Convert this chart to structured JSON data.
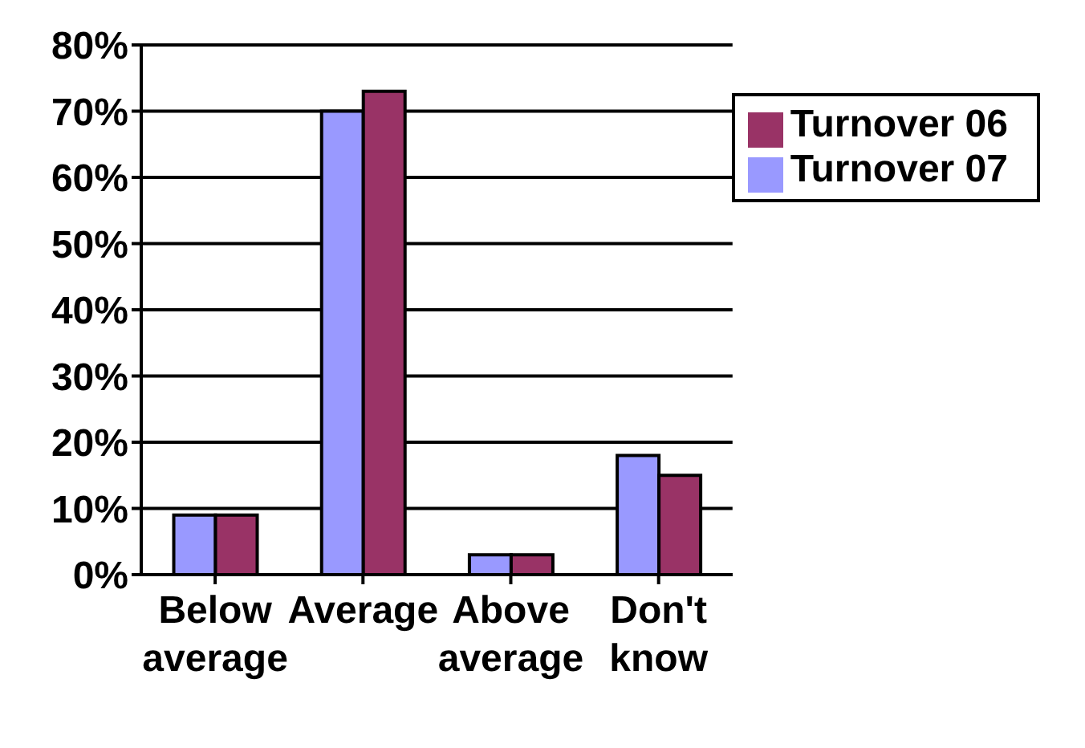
{
  "chart_data": {
    "type": "bar",
    "categories": [
      "Below average",
      "Average",
      "Above average",
      "Don't know"
    ],
    "series": [
      {
        "name": "Turnover 07",
        "color": "#9999ff",
        "values": [
          9,
          70,
          3,
          18
        ]
      },
      {
        "name": "Turnover 06",
        "color": "#993366",
        "values": [
          9,
          73,
          3,
          15
        ]
      }
    ],
    "ylim": [
      0,
      80
    ],
    "yticks": [
      {
        "value": 0,
        "label": "0%"
      },
      {
        "value": 10,
        "label": "10%"
      },
      {
        "value": 20,
        "label": "20%"
      },
      {
        "value": 30,
        "label": "30%"
      },
      {
        "value": 40,
        "label": "40%"
      },
      {
        "value": 50,
        "label": "50%"
      },
      {
        "value": 60,
        "label": "60%"
      },
      {
        "value": 70,
        "label": "70%"
      },
      {
        "value": 80,
        "label": "80%"
      }
    ],
    "grid": "y",
    "legend": "top right"
  }
}
